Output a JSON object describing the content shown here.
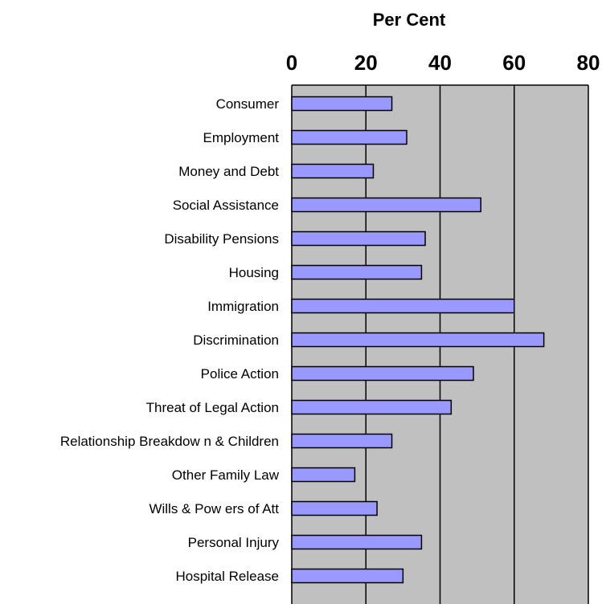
{
  "chart_data": {
    "type": "bar",
    "orientation": "horizontal",
    "axis_title": "Per Cent",
    "xlim": [
      0,
      80
    ],
    "ticks": [
      0,
      20,
      40,
      60,
      80
    ],
    "tick_labels": [
      "0",
      "20",
      "40",
      "60",
      "80"
    ],
    "grid": true,
    "plot_background": "#c0c0c0",
    "bar_color": "#9999ff",
    "categories": [
      "Consumer",
      "Employment",
      "Money and Debt",
      "Social Assistance",
      "Disability Pensions",
      "Housing",
      "Immigration",
      "Discrimination",
      "Police Action",
      "Threat of Legal Action",
      "Relationship Breakdow n & Children",
      "Other Family Law",
      "Wills & Pow ers of Att",
      "Personal Injury",
      "Hospital Release"
    ],
    "values": [
      27,
      31,
      22,
      51,
      36,
      35,
      60,
      68,
      49,
      43,
      27,
      17,
      23,
      35,
      30
    ]
  }
}
